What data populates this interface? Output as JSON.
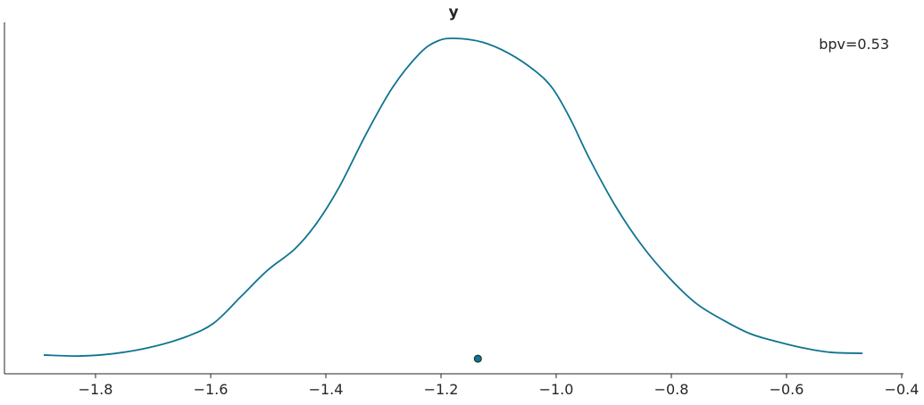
{
  "chart_data": {
    "type": "line",
    "title": "y",
    "annotation": "bpv=0.53",
    "xlabel": "",
    "ylabel": "",
    "xlim": [
      -1.955,
      -0.395
    ],
    "ylim": [
      0,
      1.05
    ],
    "x_ticks": [
      -1.8,
      -1.6,
      -1.4,
      -1.2,
      -1.0,
      -0.8,
      -0.6,
      -0.4
    ],
    "x_tick_labels": [
      "−1.8",
      "−1.6",
      "−1.4",
      "−1.2",
      "−1.0",
      "−0.8",
      "−0.6",
      "−0.4"
    ],
    "y_ticks_shown": false,
    "grid": false,
    "line_color": "#0f7490",
    "series": [
      {
        "x": [
          -1.89,
          -1.826,
          -1.764,
          -1.702,
          -1.64,
          -1.594,
          -1.547,
          -1.501,
          -1.454,
          -1.416,
          -1.377,
          -1.33,
          -1.284,
          -1.237,
          -1.206,
          -1.177,
          -1.129,
          -1.082,
          -1.036,
          -1.005,
          -0.974,
          -0.943,
          -0.896,
          -0.85,
          -0.803,
          -0.757,
          -0.71,
          -0.664,
          -0.617,
          -0.571,
          -0.524,
          -0.468
        ],
        "y": [
          0.056,
          0.053,
          0.061,
          0.08,
          0.112,
          0.152,
          0.231,
          0.309,
          0.372,
          0.449,
          0.556,
          0.715,
          0.854,
          0.955,
          0.992,
          1.0,
          0.989,
          0.955,
          0.902,
          0.848,
          0.755,
          0.644,
          0.497,
          0.38,
          0.285,
          0.21,
          0.16,
          0.12,
          0.096,
          0.077,
          0.064,
          0.061
        ]
      }
    ],
    "marker": {
      "x": -1.136,
      "y": 0.045,
      "color": "#0f7490"
    }
  }
}
